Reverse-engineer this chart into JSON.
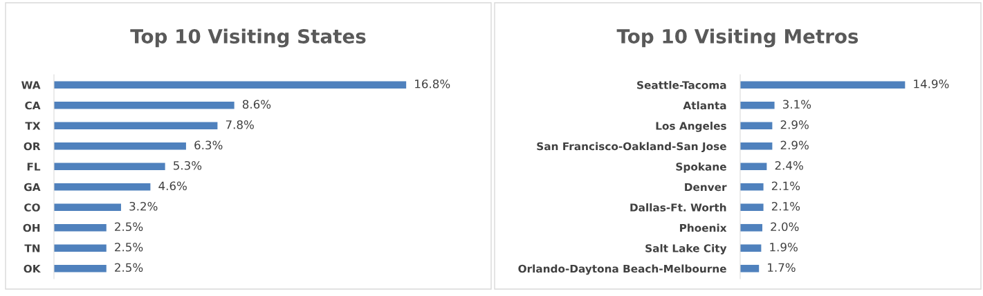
{
  "chart_data": [
    {
      "type": "bar",
      "orientation": "horizontal",
      "title": "Top 10 Visiting States",
      "categories": [
        "WA",
        "CA",
        "TX",
        "OR",
        "FL",
        "GA",
        "CO",
        "OH",
        "TN",
        "OK"
      ],
      "values": [
        16.8,
        8.6,
        7.8,
        6.3,
        5.3,
        4.6,
        3.2,
        2.5,
        2.5,
        2.5
      ],
      "value_labels": [
        "16.8%",
        "8.6%",
        "7.8%",
        "6.3%",
        "5.3%",
        "4.6%",
        "3.2%",
        "2.5%",
        "2.5%",
        "2.5%"
      ],
      "color": "#4f81bd",
      "grid": false
    },
    {
      "type": "bar",
      "orientation": "horizontal",
      "title": "Top 10 Visiting Metros",
      "categories": [
        "Seattle-Tacoma",
        "Atlanta",
        "Los Angeles",
        "San Francisco-Oakland-San Jose",
        "Spokane",
        "Denver",
        "Dallas-Ft. Worth",
        "Phoenix",
        "Salt Lake City",
        "Orlando-Daytona Beach-Melbourne"
      ],
      "values": [
        14.9,
        3.1,
        2.9,
        2.9,
        2.4,
        2.1,
        2.1,
        2.0,
        1.9,
        1.7
      ],
      "value_labels": [
        "14.9%",
        "3.1%",
        "2.9%",
        "2.9%",
        "2.4%",
        "2.1%",
        "2.1%",
        "2.0%",
        "1.9%",
        "1.7%"
      ],
      "color": "#4f81bd",
      "grid": false
    }
  ]
}
